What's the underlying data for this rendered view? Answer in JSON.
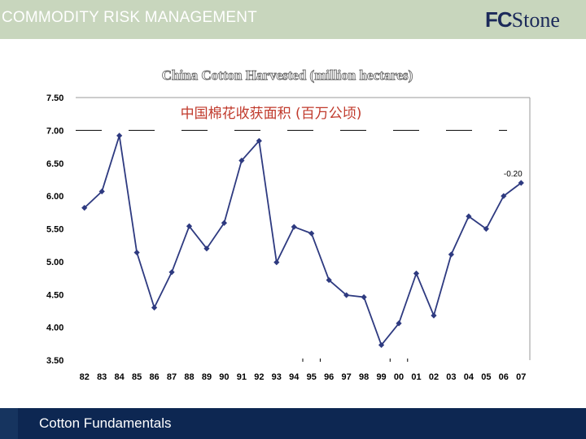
{
  "header": {
    "title": "COMMODITY RISK MANAGEMENT",
    "logo_text": "FCStone",
    "logo_prefix": "FC",
    "logo_suffix": "Stone"
  },
  "footer": {
    "text": "Cotton Fundamentals"
  },
  "colors": {
    "header_bg": "#c8d6bd",
    "footer_bg": "#0d2752",
    "series": "#2e3a80",
    "subtitle": "#c0392b"
  },
  "chart_data": {
    "type": "line",
    "title": "China Cotton Harvested (million hectares)",
    "subtitle": "中国棉花收获面积 (百万公顷)",
    "categories": [
      "82",
      "83",
      "84",
      "85",
      "86",
      "87",
      "88",
      "89",
      "90",
      "91",
      "92",
      "93",
      "94",
      "95",
      "96",
      "97",
      "98",
      "99",
      "00",
      "01",
      "02",
      "03",
      "04",
      "05",
      "06",
      "07"
    ],
    "values": [
      5.82,
      6.07,
      6.92,
      5.14,
      4.3,
      4.84,
      5.54,
      5.2,
      5.59,
      6.54,
      6.84,
      4.99,
      5.53,
      5.43,
      4.72,
      4.49,
      4.46,
      3.73,
      4.06,
      4.82,
      4.18,
      5.11,
      5.69,
      5.5,
      6.0,
      6.2
    ],
    "ylim": [
      3.5,
      7.5
    ],
    "yticks": [
      "7.50",
      "7.00",
      "6.50",
      "6.00",
      "5.50",
      "5.00",
      "4.50",
      "4.00",
      "3.50"
    ],
    "annotation": "-0.20",
    "xlabel": "",
    "ylabel": ""
  }
}
